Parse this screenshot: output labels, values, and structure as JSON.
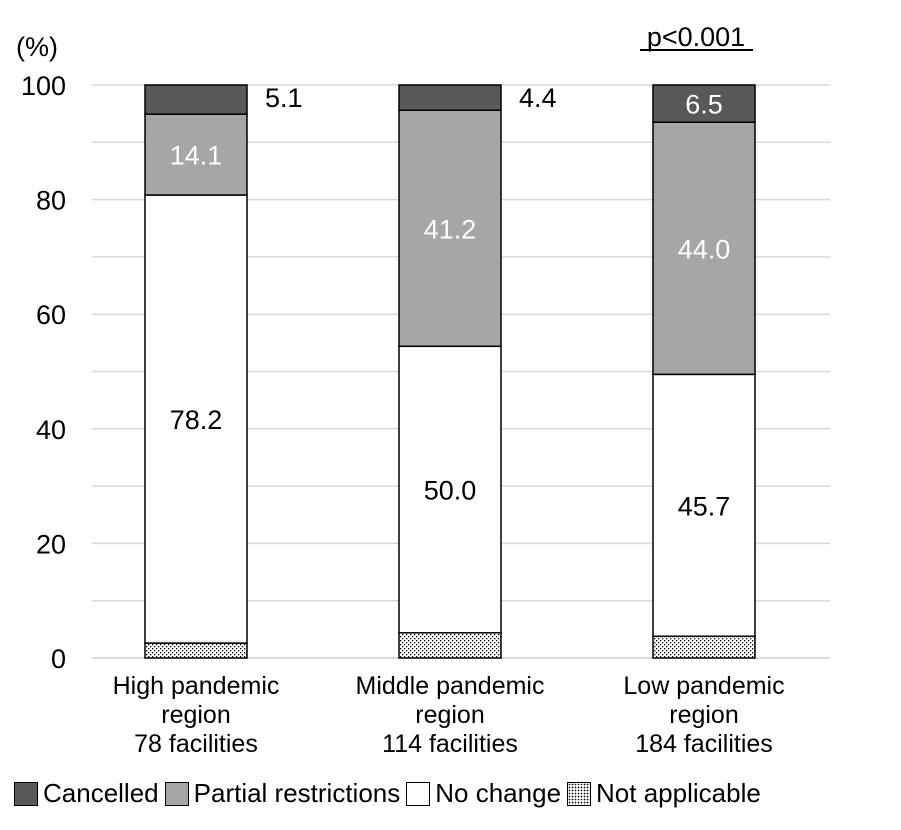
{
  "unit_label": "(%)",
  "significance": "p<0.001",
  "colors": {
    "Cancelled": "#595959",
    "Partial restrictions": "#a6a6a6",
    "No change": "#ffffff",
    "Not applicable": "stipple",
    "grid": "#d9d9d9"
  },
  "chart_data": {
    "type": "bar",
    "stacked": true,
    "categories": [
      [
        "High pandemic",
        "region",
        "78 facilities"
      ],
      [
        "Middle pandemic",
        "region",
        "114 facilities"
      ],
      [
        "Low pandemic",
        "region",
        "184 facilities"
      ]
    ],
    "ylim": [
      0,
      100
    ],
    "yticks": [
      0,
      20,
      40,
      60,
      80,
      100
    ],
    "grid": true,
    "legend_position": "bottom",
    "series": [
      {
        "name": "Not applicable",
        "values": [
          2.6,
          4.4,
          3.8
        ],
        "labels": [
          "",
          "",
          ""
        ]
      },
      {
        "name": "No change",
        "values": [
          78.2,
          50.0,
          45.7
        ],
        "labels": [
          "78.2",
          "50.0",
          "45.7"
        ]
      },
      {
        "name": "Partial restrictions",
        "values": [
          14.1,
          41.2,
          44.0
        ],
        "labels": [
          "14.1",
          "41.2",
          "44.0"
        ]
      },
      {
        "name": "Cancelled",
        "values": [
          5.1,
          4.4,
          6.5
        ],
        "labels": [
          "5.1",
          "4.4",
          "6.5"
        ]
      }
    ]
  }
}
